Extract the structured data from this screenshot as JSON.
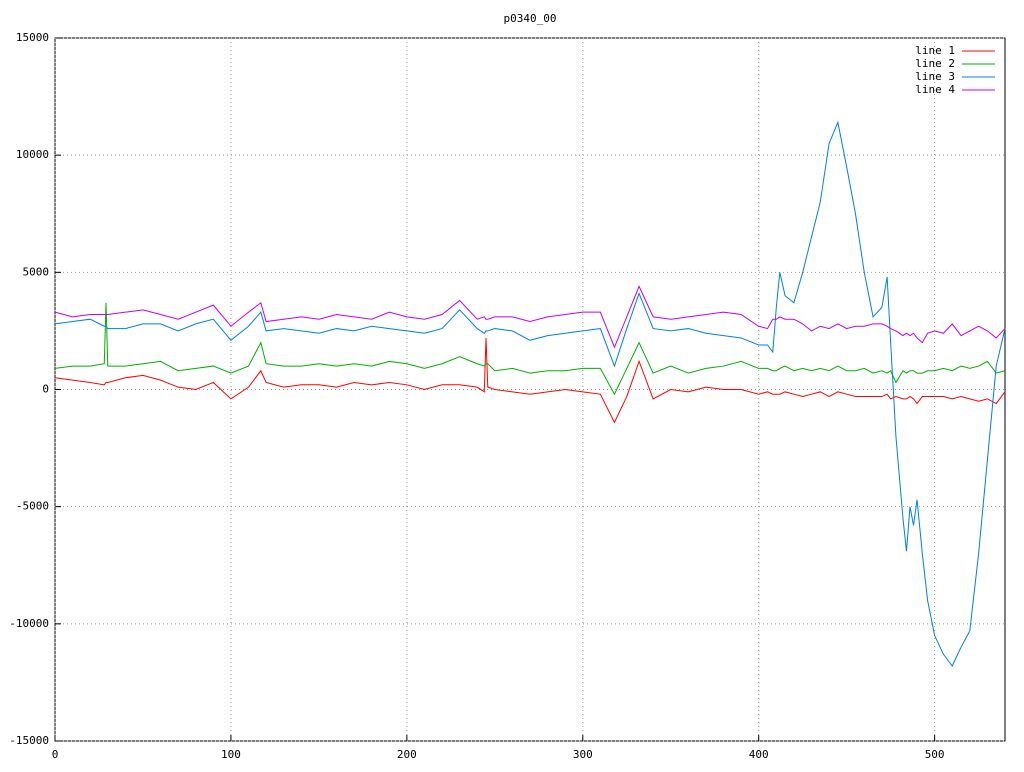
{
  "chart_data": {
    "type": "line",
    "title": "p0340_00",
    "x": [
      0,
      10,
      20,
      28,
      29,
      30,
      40,
      50,
      60,
      70,
      80,
      90,
      100,
      110,
      117,
      120,
      130,
      140,
      150,
      160,
      170,
      180,
      190,
      200,
      210,
      220,
      230,
      240,
      244,
      245,
      246,
      250,
      260,
      270,
      280,
      290,
      300,
      310,
      318,
      325,
      332,
      340,
      350,
      360,
      370,
      380,
      390,
      400,
      405,
      408,
      410,
      412,
      415,
      420,
      425,
      430,
      435,
      440,
      445,
      450,
      455,
      460,
      465,
      470,
      473,
      475,
      478,
      482,
      484,
      486,
      488,
      490,
      493,
      496,
      500,
      505,
      510,
      515,
      520,
      525,
      530,
      535,
      540
    ],
    "series": [
      {
        "name": "line 1",
        "color": "#ff0000",
        "values": [
          500,
          400,
          300,
          200,
          300,
          300,
          500,
          600,
          400,
          100,
          0,
          300,
          -400,
          100,
          800,
          300,
          100,
          200,
          200,
          100,
          300,
          200,
          300,
          200,
          0,
          200,
          200,
          100,
          -100,
          2200,
          100,
          0,
          -100,
          -200,
          -100,
          0,
          -100,
          -200,
          -1400,
          -300,
          1200,
          -400,
          0,
          -100,
          100,
          0,
          0,
          -200,
          -100,
          -200,
          -200,
          -200,
          -100,
          -200,
          -300,
          -200,
          -100,
          -300,
          -100,
          -200,
          -300,
          -300,
          -300,
          -300,
          -200,
          -400,
          -300,
          -400,
          -400,
          -300,
          -400,
          -600,
          -300,
          -300,
          -300,
          -300,
          -400,
          -300,
          -400,
          -500,
          -400,
          -600,
          -100
        ]
      },
      {
        "name": "line 2",
        "color": "#00b000",
        "values": [
          900,
          1000,
          1000,
          1100,
          3700,
          1000,
          1000,
          1100,
          1200,
          800,
          900,
          1000,
          700,
          1000,
          2000,
          1100,
          1000,
          1000,
          1100,
          1000,
          1100,
          1000,
          1200,
          1100,
          900,
          1100,
          1400,
          1100,
          1000,
          1100,
          1100,
          800,
          900,
          700,
          800,
          800,
          900,
          900,
          -200,
          900,
          2000,
          700,
          1000,
          700,
          900,
          1000,
          1200,
          900,
          900,
          800,
          800,
          900,
          1000,
          800,
          900,
          800,
          900,
          800,
          1000,
          800,
          800,
          900,
          700,
          800,
          700,
          800,
          300,
          800,
          700,
          800,
          800,
          700,
          700,
          800,
          800,
          900,
          800,
          1000,
          900,
          1000,
          1200,
          700,
          800
        ]
      },
      {
        "name": "line 3",
        "color": "#0080e0",
        "values": [
          2800,
          2900,
          3000,
          2700,
          2700,
          2600,
          2600,
          2800,
          2800,
          2500,
          2800,
          3000,
          2100,
          2700,
          3300,
          2500,
          2600,
          2500,
          2400,
          2600,
          2500,
          2700,
          2600,
          2500,
          2400,
          2600,
          3400,
          2600,
          2400,
          2500,
          2500,
          2600,
          2500,
          2100,
          2300,
          2400,
          2500,
          2600,
          1000,
          2600,
          4100,
          2600,
          2500,
          2600,
          2400,
          2300,
          2200,
          1900,
          1900,
          1600,
          3500,
          5000,
          4000,
          3700,
          5000,
          6500,
          8000,
          10500,
          11400,
          9500,
          7500,
          5000,
          3100,
          3500,
          4800,
          2000,
          -2000,
          -5500,
          -6900,
          -5000,
          -5800,
          -4700,
          -7000,
          -9000,
          -10500,
          -11300,
          -11800,
          -11000,
          -10300,
          -7000,
          -3000,
          1000,
          2600
        ]
      },
      {
        "name": "line 4",
        "color": "#c000ff",
        "values": [
          3300,
          3100,
          3200,
          3200,
          3200,
          3200,
          3300,
          3400,
          3200,
          3000,
          3300,
          3600,
          2700,
          3300,
          3700,
          2900,
          3000,
          3100,
          3000,
          3200,
          3100,
          3000,
          3300,
          3100,
          3000,
          3200,
          3800,
          3000,
          3100,
          3000,
          3000,
          3100,
          3100,
          2900,
          3100,
          3200,
          3300,
          3300,
          1800,
          3100,
          4400,
          3100,
          3000,
          3100,
          3200,
          3300,
          3200,
          2700,
          2600,
          3000,
          3000,
          3100,
          3000,
          3000,
          2800,
          2500,
          2700,
          2600,
          2800,
          2600,
          2700,
          2700,
          2800,
          2800,
          2700,
          2600,
          2500,
          2300,
          2400,
          2300,
          2400,
          2200,
          2000,
          2400,
          2500,
          2400,
          2800,
          2300,
          2500,
          2700,
          2500,
          2200,
          2600
        ]
      }
    ],
    "xlim": [
      0,
      540
    ],
    "ylim": [
      -15000,
      15000
    ],
    "xticks": [
      0,
      100,
      200,
      300,
      400,
      500
    ],
    "yticks": [
      -15000,
      -10000,
      -5000,
      0,
      5000,
      10000,
      15000
    ],
    "grid": true,
    "legend": "top-right"
  }
}
